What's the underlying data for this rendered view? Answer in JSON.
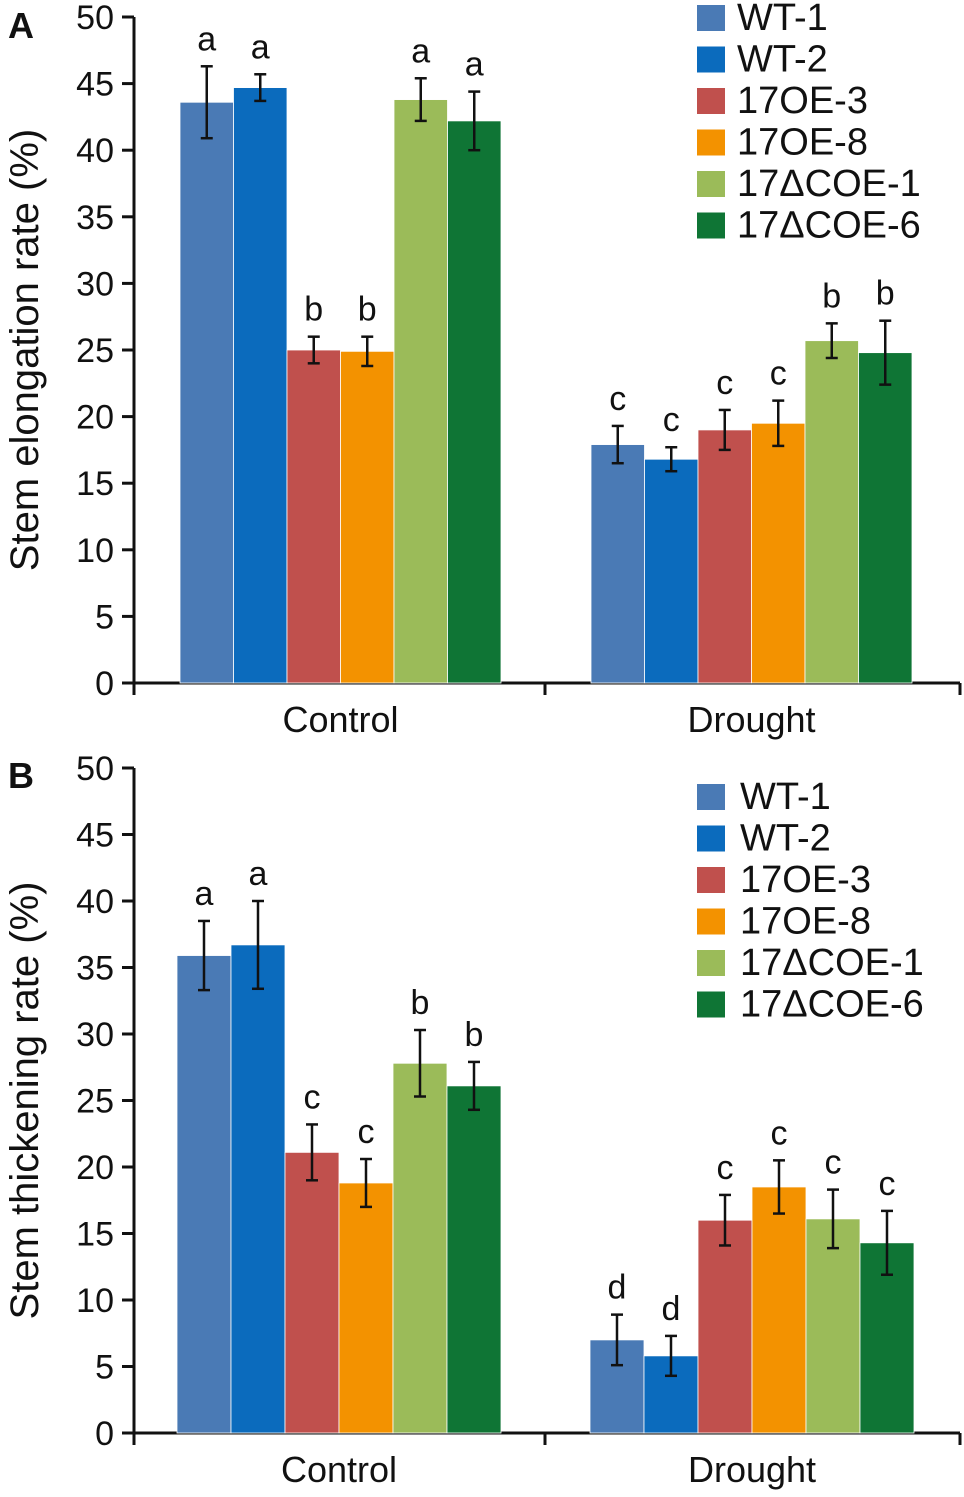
{
  "chart_data": [
    {
      "type": "bar",
      "panel_label": "A",
      "ylabel": "Stem elongation rate (%)",
      "xlabel": "",
      "ylim": [
        0,
        50
      ],
      "yticks": [
        "0",
        "5",
        "10",
        "15",
        "20",
        "25",
        "30",
        "35",
        "40",
        "45",
        "50"
      ],
      "grid": false,
      "legend_position": "top-right",
      "categories": [
        "Control",
        "Drought"
      ],
      "series": [
        {
          "name": "WT-1",
          "color": "#4a7ab5",
          "values": [
            43.6,
            17.9
          ],
          "errors": [
            2.7,
            1.4
          ],
          "letters": [
            "a",
            "c"
          ]
        },
        {
          "name": "WT-2",
          "color": "#0b6bbd",
          "values": [
            44.7,
            16.8
          ],
          "errors": [
            1.0,
            0.9
          ],
          "letters": [
            "a",
            "c"
          ]
        },
        {
          "name": "17OE-3",
          "color": "#c0504d",
          "values": [
            25.0,
            19.0
          ],
          "errors": [
            1.0,
            1.5
          ],
          "letters": [
            "b",
            "c"
          ]
        },
        {
          "name": "17OE-8",
          "color": "#f39200",
          "values": [
            24.9,
            19.5
          ],
          "errors": [
            1.1,
            1.7
          ],
          "letters": [
            "b",
            "c"
          ]
        },
        {
          "name": "17ΔCOE-1",
          "color": "#9bbb59",
          "values": [
            43.8,
            25.7
          ],
          "errors": [
            1.6,
            1.3
          ],
          "letters": [
            "a",
            "b"
          ]
        },
        {
          "name": "17ΔCOE-6",
          "color": "#0f7535",
          "values": [
            42.2,
            24.8
          ],
          "errors": [
            2.2,
            2.4
          ],
          "letters": [
            "a",
            "b"
          ]
        }
      ]
    },
    {
      "type": "bar",
      "panel_label": "B",
      "ylabel": "Stem thickening rate (%)",
      "xlabel": "",
      "ylim": [
        0,
        50
      ],
      "yticks": [
        "0",
        "5",
        "10",
        "15",
        "20",
        "25",
        "30",
        "35",
        "40",
        "45",
        "50"
      ],
      "grid": false,
      "legend_position": "top-right",
      "categories": [
        "Control",
        "Drought"
      ],
      "series": [
        {
          "name": "WT-1",
          "color": "#4a7ab5",
          "values": [
            35.9,
            7.0
          ],
          "errors": [
            2.6,
            1.9
          ],
          "letters": [
            "a",
            "d"
          ]
        },
        {
          "name": "WT-2",
          "color": "#0b6bbd",
          "values": [
            36.7,
            5.8
          ],
          "errors": [
            3.3,
            1.5
          ],
          "letters": [
            "a",
            "d"
          ]
        },
        {
          "name": "17OE-3",
          "color": "#c0504d",
          "values": [
            21.1,
            16.0
          ],
          "errors": [
            2.1,
            1.9
          ],
          "letters": [
            "c",
            "c"
          ]
        },
        {
          "name": "17OE-8",
          "color": "#f39200",
          "values": [
            18.8,
            18.5
          ],
          "errors": [
            1.8,
            2.0
          ],
          "letters": [
            "c",
            "c"
          ]
        },
        {
          "name": "17ΔCOE-1",
          "color": "#9bbb59",
          "values": [
            27.8,
            16.1
          ],
          "errors": [
            2.5,
            2.2
          ],
          "letters": [
            "b",
            "c"
          ]
        },
        {
          "name": "17ΔCOE-6",
          "color": "#0f7535",
          "values": [
            26.1,
            14.3
          ],
          "errors": [
            1.8,
            2.4
          ],
          "letters": [
            "b",
            "c"
          ]
        }
      ]
    }
  ]
}
